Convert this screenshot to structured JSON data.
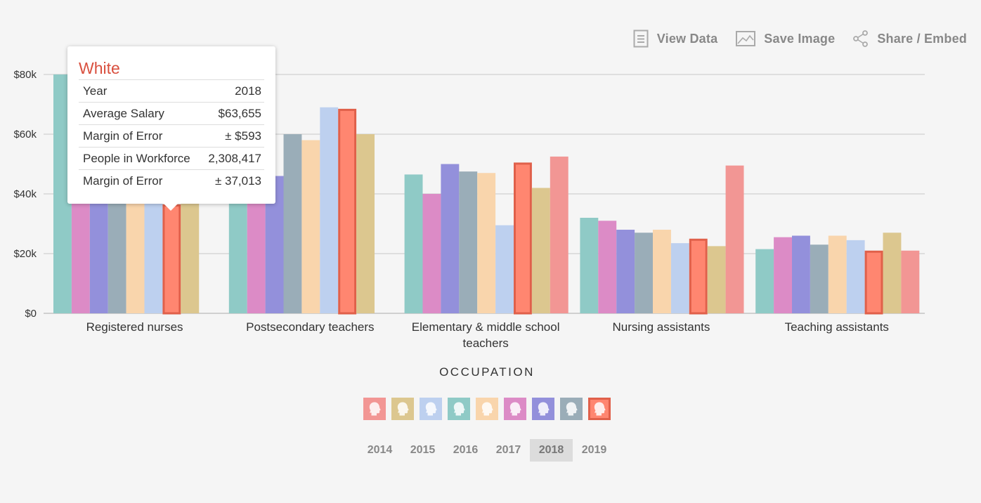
{
  "toolbar": {
    "view_data": "View Data",
    "save_image": "Save Image",
    "share_embed": "Share / Embed"
  },
  "tooltip": {
    "title": "White",
    "rows": [
      {
        "label": "Year",
        "value": "2018"
      },
      {
        "label": "Average Salary",
        "value": "$63,655"
      },
      {
        "label": "Margin of Error",
        "value": "± $593"
      },
      {
        "label": "People in Workforce",
        "value": "2,308,417"
      },
      {
        "label": "Margin of Error",
        "value": "± 37,013"
      }
    ]
  },
  "axis_title": "OCCUPATION",
  "legend": [
    {
      "color": "#f29694",
      "active": false,
      "icon": "person-head-icon"
    },
    {
      "color": "#dcc78f",
      "active": false,
      "icon": "person-head-icon"
    },
    {
      "color": "#bdd0ef",
      "active": false,
      "icon": "person-head-icon"
    },
    {
      "color": "#8fcac6",
      "active": false,
      "icon": "person-head-icon"
    },
    {
      "color": "#f9d5ac",
      "active": false,
      "icon": "person-head-icon"
    },
    {
      "color": "#dc8bc6",
      "active": false,
      "icon": "person-head-icon"
    },
    {
      "color": "#9390db",
      "active": false,
      "icon": "person-head-icon"
    },
    {
      "color": "#9aadb8",
      "active": false,
      "icon": "person-head-icon"
    },
    {
      "color": "#ff8670",
      "active": true,
      "icon": "person-head-icon"
    }
  ],
  "years": [
    "2014",
    "2015",
    "2016",
    "2017",
    "2018",
    "2019"
  ],
  "selected_year": "2018",
  "chart_data": {
    "type": "bar",
    "categories": [
      [
        "Registered nurses"
      ],
      [
        "Postsecondary teachers"
      ],
      [
        "Elementary & middle school",
        "teachers"
      ],
      [
        "Nursing assistants"
      ],
      [
        "Teaching assistants"
      ]
    ],
    "y_ticks": [
      "$0",
      "$20k",
      "$40k",
      "$60k",
      "$80k"
    ],
    "ylim": [
      0,
      80000
    ],
    "grid": true,
    "highlight_color": "#e0604a",
    "series": [
      {
        "color": "#8fcac6",
        "values": [
          80000,
          45500,
          46500,
          32000,
          21500
        ],
        "highlight": false
      },
      {
        "color": "#dc8bc6",
        "values": [
          41000,
          42500,
          40000,
          31000,
          25500
        ],
        "highlight": false
      },
      {
        "color": "#9390db",
        "values": [
          40000,
          46000,
          50000,
          28000,
          26000
        ],
        "highlight": false
      },
      {
        "color": "#9aadb8",
        "values": [
          40500,
          60000,
          47500,
          27000,
          23000
        ],
        "highlight": false
      },
      {
        "color": "#f9d5ac",
        "values": [
          40000,
          58000,
          47000,
          28000,
          26000
        ],
        "highlight": false
      },
      {
        "color": "#bdd0ef",
        "values": [
          40000,
          69000,
          29500,
          23500,
          24500
        ],
        "highlight": false
      },
      {
        "color": "#ff8670",
        "values": [
          36500,
          68500,
          50500,
          25000,
          21000
        ],
        "highlight": true
      },
      {
        "color": "#dcc78f",
        "values": [
          38000,
          60000,
          42000,
          22500,
          27000
        ],
        "highlight": false
      },
      {
        "color": "#f29694",
        "values": [
          null,
          null,
          52500,
          49500,
          21000
        ],
        "highlight": false
      }
    ]
  }
}
